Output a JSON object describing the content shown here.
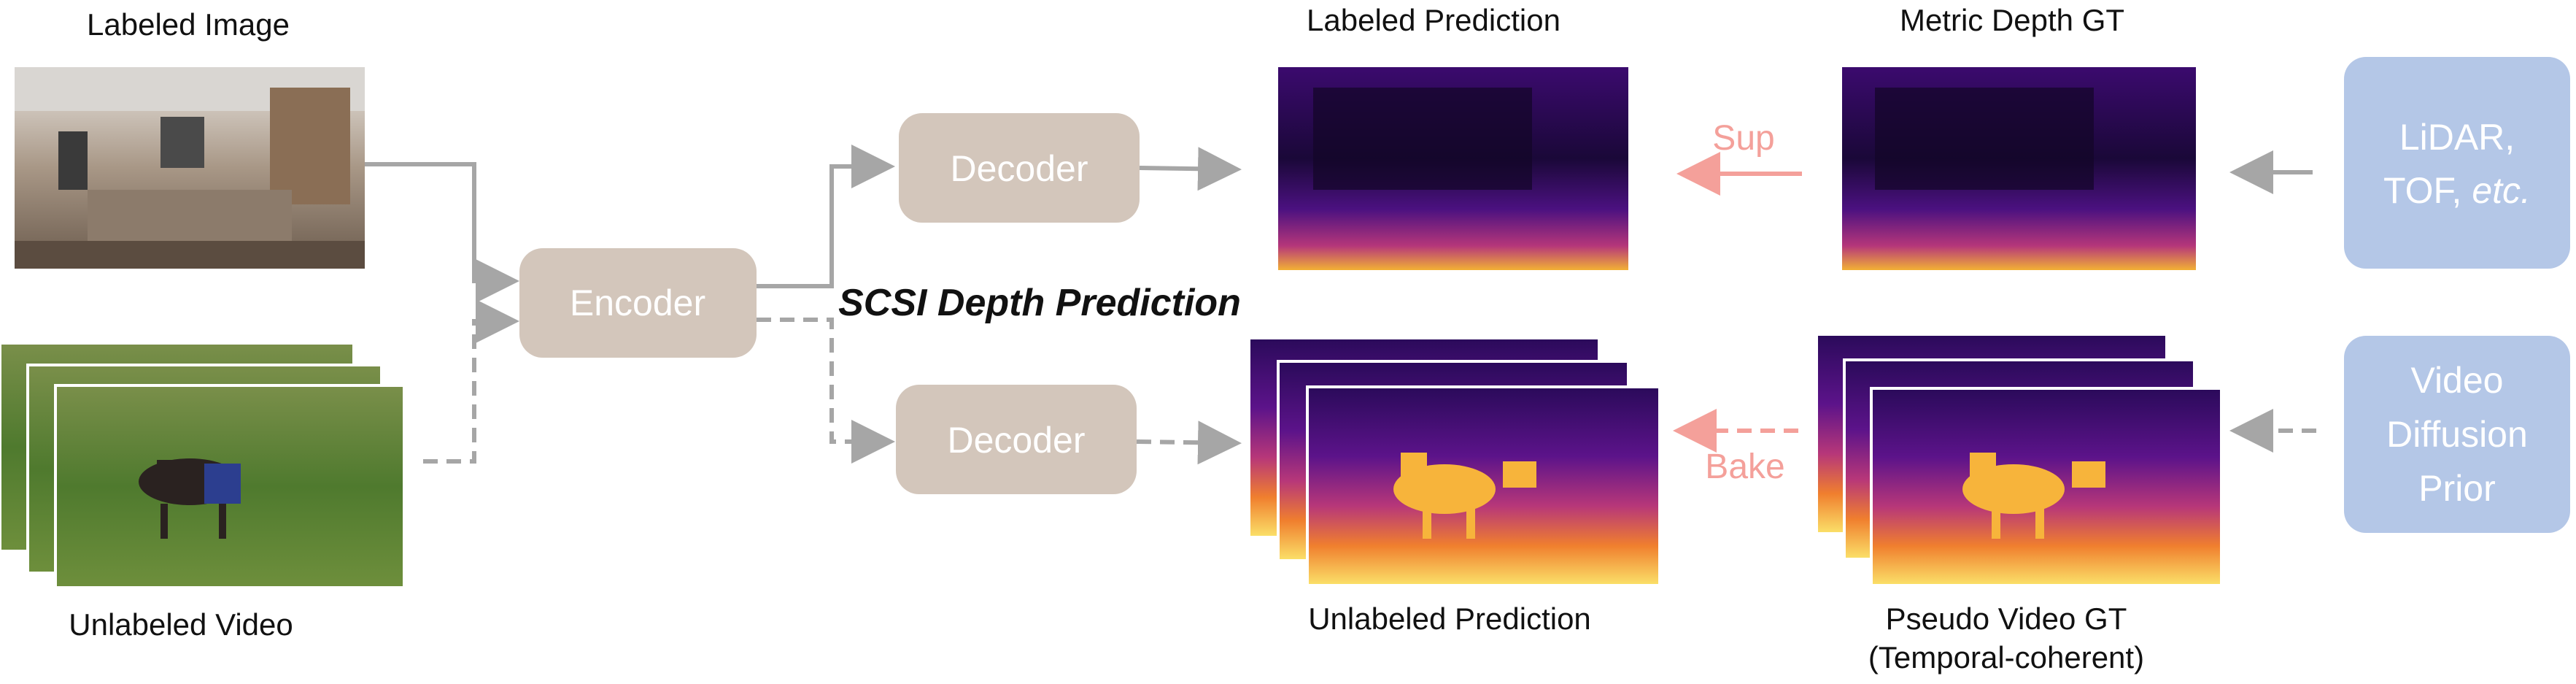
{
  "labels": {
    "labeled_image": "Labeled Image",
    "unlabeled_video": "Unlabeled Video",
    "encoder": "Encoder",
    "decoder_top": "Decoder",
    "decoder_bottom": "Decoder",
    "title": "SCSI Depth Prediction",
    "labeled_prediction": "Labeled Prediction",
    "unlabeled_prediction": "Unlabeled Prediction",
    "metric_depth_gt": "Metric Depth GT",
    "pseudo_video_gt_line1": "Pseudo Video GT",
    "pseudo_video_gt_line2": "(Temporal-coherent)",
    "sup": "Sup",
    "bake": "Bake",
    "lidar_line1": "LiDAR,",
    "lidar_line2_prefix": "TOF, ",
    "lidar_line2_italic": "etc.",
    "prior_line1": "Video",
    "prior_line2": "Diffusion",
    "prior_line3": "Prior"
  },
  "colors": {
    "network_box": "#d3c6bb",
    "source_box": "#b4c7e7",
    "arrow_gray": "#a6a6a6",
    "arrow_pink": "#f4a09a"
  }
}
